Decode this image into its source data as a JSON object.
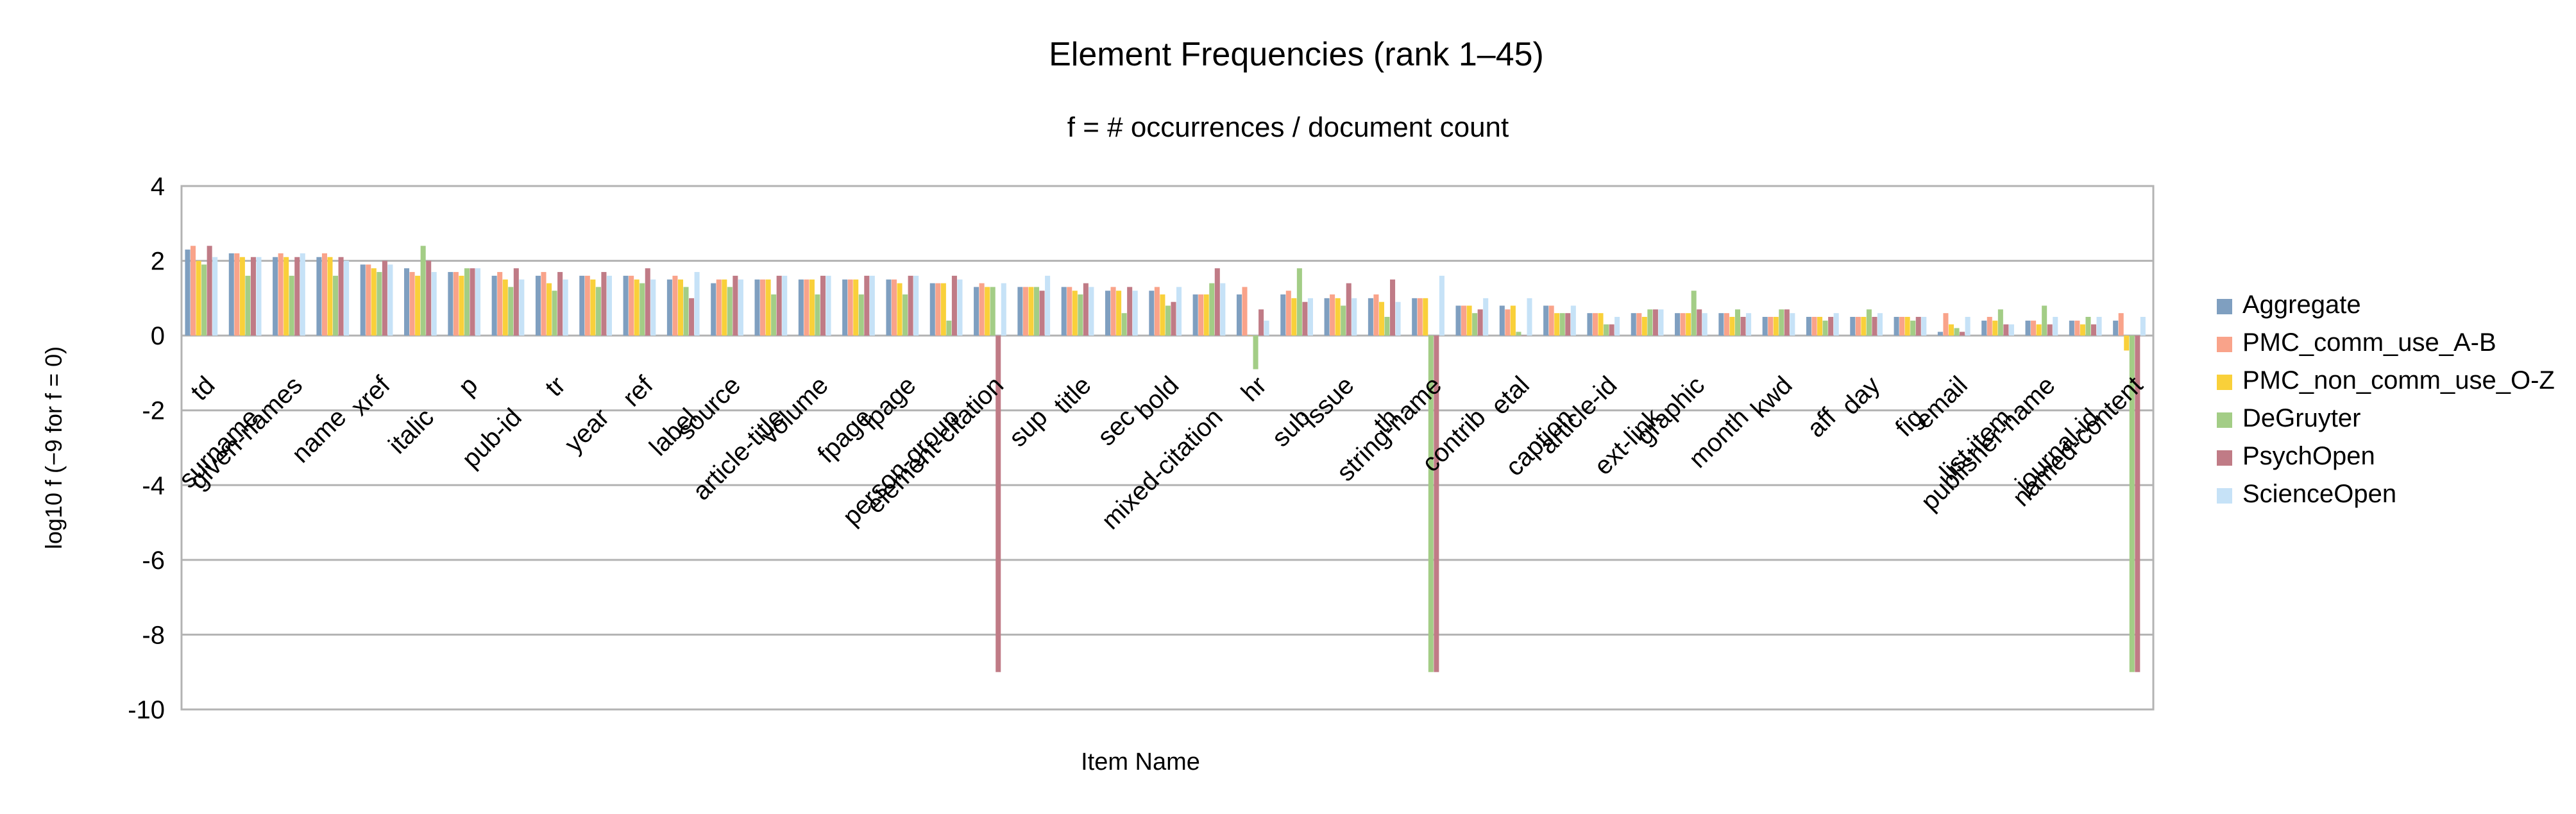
{
  "chart_data": {
    "type": "bar",
    "title": "Element Frequencies (rank 1–45)",
    "subtitle": "f = # occurrences / document count",
    "xlabel": "Item Name",
    "ylabel": "log10  f  (−9 for f = 0)",
    "ylim": [
      -10,
      4
    ],
    "yticks": [
      4,
      2,
      0,
      -2,
      -4,
      -6,
      -8,
      -10
    ],
    "grid": true,
    "legend_position": "right",
    "categories": [
      "td",
      "surname",
      "given-names",
      "name",
      "xref",
      "italic",
      "p",
      "pub-id",
      "tr",
      "year",
      "ref",
      "label",
      "source",
      "article-title",
      "volume",
      "fpage",
      "lpage",
      "person-group",
      "element-citation",
      "sup",
      "title",
      "sec",
      "bold",
      "mixed-citation",
      "hr",
      "sub",
      "issue",
      "th",
      "string-name",
      "contrib",
      "etal",
      "caption",
      "article-id",
      "ext-link",
      "graphic",
      "month",
      "kwd",
      "aff",
      "day",
      "fig",
      "email",
      "list-item",
      "publisher-name",
      "journal-id",
      "named-content"
    ],
    "series": [
      {
        "name": "Aggregate",
        "color": "#7f9fc0",
        "values": [
          2.3,
          2.2,
          2.1,
          2.1,
          1.9,
          1.8,
          1.7,
          1.6,
          1.6,
          1.6,
          1.6,
          1.5,
          1.4,
          1.5,
          1.5,
          1.5,
          1.5,
          1.4,
          1.3,
          1.3,
          1.3,
          1.2,
          1.2,
          1.1,
          1.1,
          1.1,
          1.0,
          1.0,
          1.0,
          0.8,
          0.8,
          0.8,
          0.6,
          0.6,
          0.6,
          0.6,
          0.5,
          0.5,
          0.5,
          0.5,
          0.1,
          0.4,
          0.4,
          0.4,
          0.4
        ]
      },
      {
        "name": "PMC_comm_use_A-B",
        "color": "#f9a38a",
        "values": [
          2.4,
          2.2,
          2.2,
          2.2,
          1.9,
          1.7,
          1.7,
          1.7,
          1.7,
          1.6,
          1.6,
          1.6,
          1.5,
          1.5,
          1.5,
          1.5,
          1.5,
          1.4,
          1.4,
          1.3,
          1.3,
          1.3,
          1.3,
          1.1,
          1.3,
          1.2,
          1.1,
          1.1,
          1.0,
          0.8,
          0.7,
          0.8,
          0.6,
          0.6,
          0.6,
          0.6,
          0.5,
          0.5,
          0.5,
          0.5,
          0.6,
          0.5,
          0.4,
          0.4,
          0.6
        ]
      },
      {
        "name": "PMC_non_comm_use_O-Z",
        "color": "#f9d03a",
        "values": [
          2.0,
          2.1,
          2.1,
          2.1,
          1.8,
          1.6,
          1.6,
          1.5,
          1.4,
          1.5,
          1.5,
          1.5,
          1.5,
          1.5,
          1.5,
          1.5,
          1.4,
          1.4,
          1.3,
          1.3,
          1.2,
          1.2,
          1.1,
          1.1,
          0.0,
          1.0,
          1.0,
          0.9,
          1.0,
          0.8,
          0.8,
          0.6,
          0.6,
          0.5,
          0.6,
          0.5,
          0.5,
          0.5,
          0.5,
          0.5,
          0.3,
          0.4,
          0.3,
          0.3,
          -0.4
        ]
      },
      {
        "name": "DeGruyter",
        "color": "#a3cd86",
        "values": [
          1.9,
          1.6,
          1.6,
          1.6,
          1.7,
          2.4,
          1.8,
          1.3,
          1.2,
          1.3,
          1.4,
          1.3,
          1.3,
          1.1,
          1.1,
          1.1,
          1.1,
          0.4,
          1.3,
          1.3,
          1.1,
          0.6,
          0.8,
          1.4,
          -0.9,
          1.8,
          0.8,
          0.5,
          -9,
          0.6,
          0.1,
          0.6,
          0.3,
          0.7,
          1.2,
          0.7,
          0.7,
          0.4,
          0.7,
          0.4,
          0.2,
          0.7,
          0.8,
          0.5,
          -9
        ]
      },
      {
        "name": "PsychOpen",
        "color": "#c07b86",
        "values": [
          2.4,
          2.1,
          2.1,
          2.1,
          2.0,
          2.0,
          1.8,
          1.8,
          1.7,
          1.7,
          1.8,
          1.0,
          1.6,
          1.6,
          1.6,
          1.6,
          1.6,
          1.6,
          -9,
          1.2,
          1.4,
          1.3,
          0.9,
          1.8,
          0.7,
          0.9,
          1.4,
          1.5,
          -9,
          0.7,
          0.0,
          0.6,
          0.3,
          0.7,
          0.7,
          0.5,
          0.7,
          0.5,
          0.5,
          0.5,
          0.1,
          0.3,
          0.3,
          0.3,
          -9
        ]
      },
      {
        "name": "ScienceOpen",
        "color": "#c6e2f7",
        "values": [
          2.1,
          2.1,
          2.2,
          2.0,
          1.9,
          1.7,
          1.8,
          1.5,
          1.5,
          1.6,
          1.5,
          1.7,
          1.5,
          1.6,
          1.6,
          1.6,
          1.6,
          1.5,
          1.4,
          1.6,
          1.3,
          1.2,
          1.3,
          1.4,
          0.4,
          1.0,
          1.0,
          0.9,
          1.6,
          1.0,
          1.0,
          0.8,
          0.5,
          0.7,
          0.6,
          0.6,
          0.6,
          0.6,
          0.6,
          0.5,
          0.5,
          0.3,
          0.5,
          0.5,
          0.5
        ]
      }
    ]
  }
}
